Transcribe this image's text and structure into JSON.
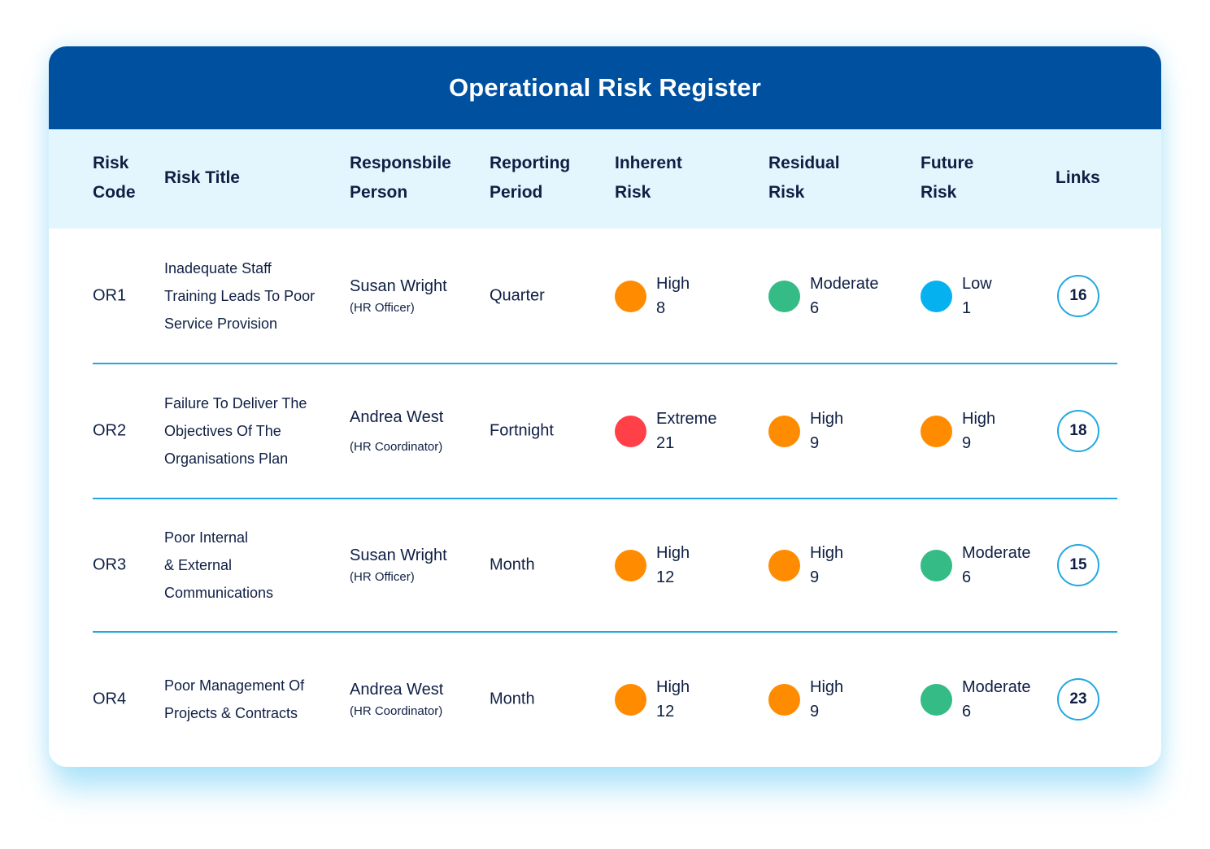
{
  "title": "Operational Risk Register",
  "columns": {
    "code": [
      "Risk",
      "Code"
    ],
    "title": "Risk Title",
    "person": [
      "Responsbile",
      "Person"
    ],
    "period": [
      "Reporting",
      "Period"
    ],
    "inherent": [
      "Inherent",
      "Risk"
    ],
    "residual": [
      "Residual",
      "Risk"
    ],
    "future": [
      "Future",
      "Risk"
    ],
    "links": "Links"
  },
  "colors": {
    "Extreme": "#ff4048",
    "High": "#ff8c00",
    "Moderate": "#34bb86",
    "Low": "#05b2ef",
    "header_bg": "#0050a0",
    "column_header_bg": "#e3f5fd",
    "divider": "#22a8e0"
  },
  "rows": [
    {
      "code": "OR1",
      "title_lines": [
        "Inadequate Staff",
        "Training Leads To Poor",
        "Service Provision"
      ],
      "person_name": "Susan Wright",
      "person_role": "(HR Officer)",
      "period": "Quarter",
      "inherent": {
        "level": "High",
        "score": "8"
      },
      "residual": {
        "level": "Moderate",
        "score": "6"
      },
      "future": {
        "level": "Low",
        "score": "1"
      },
      "links": "16"
    },
    {
      "code": "OR2",
      "title_lines": [
        "Failure To Deliver The",
        "Objectives Of The",
        "Organisations Plan"
      ],
      "person_name": "Andrea West",
      "person_role": "(HR Coordinator)",
      "period": "Fortnight",
      "inherent": {
        "level": "Extreme",
        "score": "21"
      },
      "residual": {
        "level": "High",
        "score": "9"
      },
      "future": {
        "level": "High",
        "score": "9"
      },
      "links": "18"
    },
    {
      "code": "OR3",
      "title_lines": [
        "Poor Internal",
        "& External",
        "Communications"
      ],
      "person_name": "Susan Wright",
      "person_role": "(HR Officer)",
      "period": "Month",
      "inherent": {
        "level": "High",
        "score": "12"
      },
      "residual": {
        "level": "High",
        "score": "9"
      },
      "future": {
        "level": "Moderate",
        "score": "6"
      },
      "links": "15"
    },
    {
      "code": "OR4",
      "title_lines": [
        "Poor Management Of",
        "Projects & Contracts"
      ],
      "person_name": "Andrea West",
      "person_role": "(HR Coordinator)",
      "period": "Month",
      "inherent": {
        "level": "High",
        "score": "12"
      },
      "residual": {
        "level": "High",
        "score": "9"
      },
      "future": {
        "level": "Moderate",
        "score": "6"
      },
      "links": "23"
    }
  ]
}
